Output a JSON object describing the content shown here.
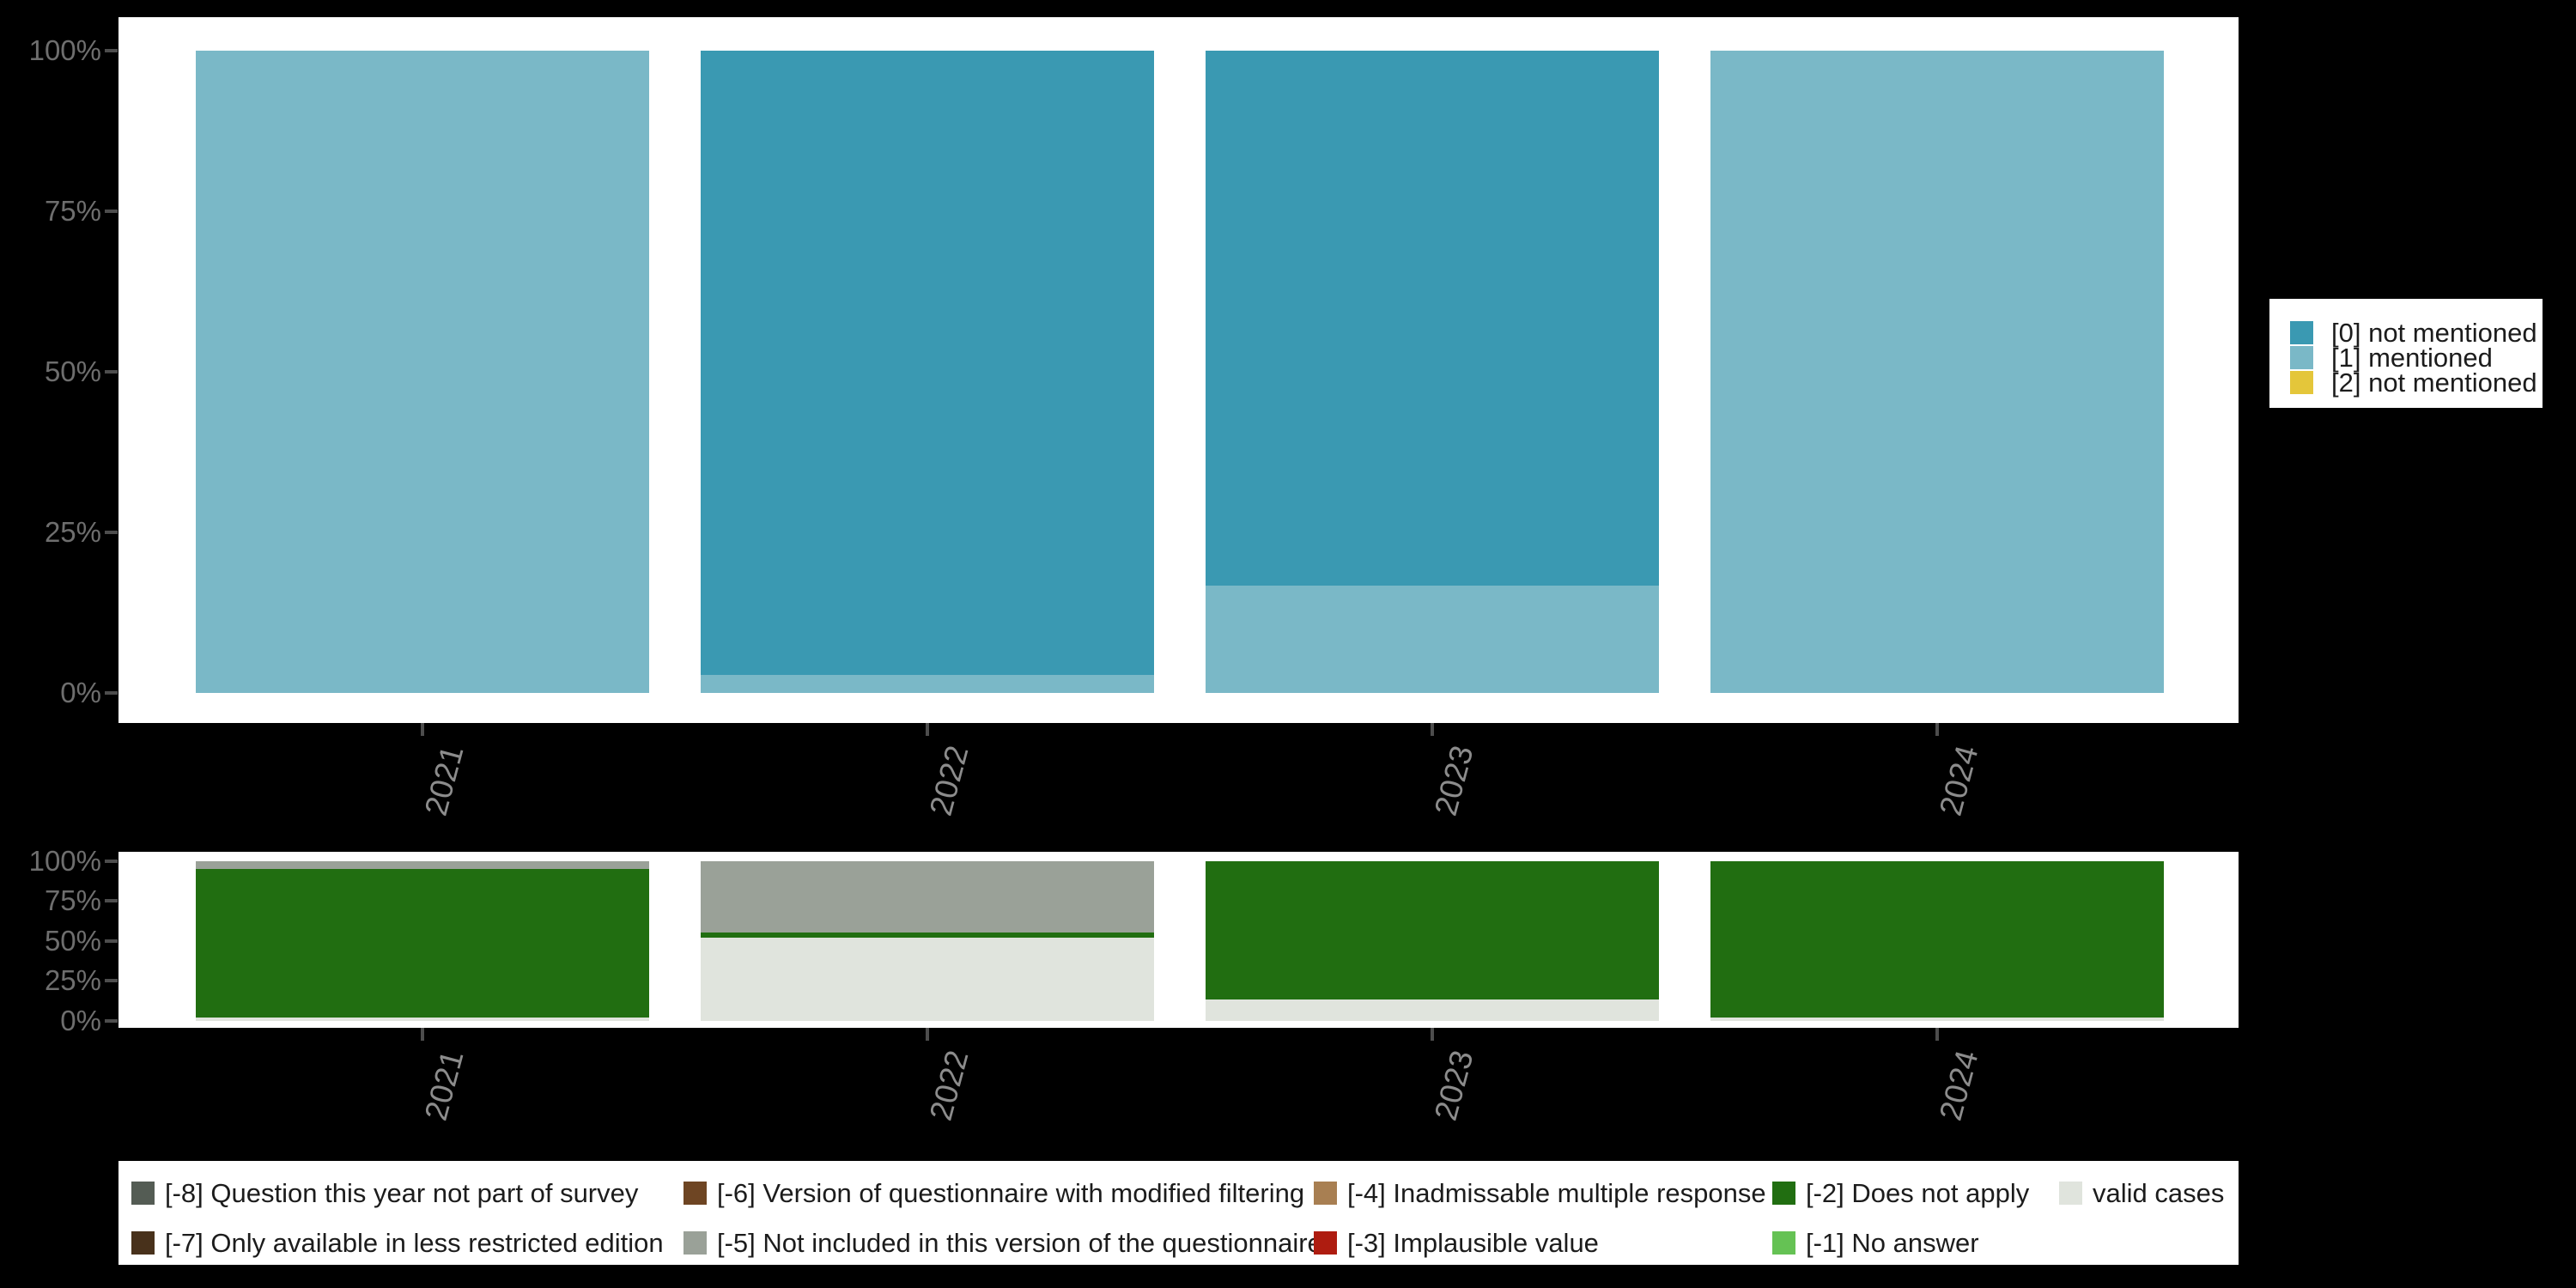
{
  "page": {
    "background": "#000000",
    "panel_background": "#ffffff",
    "axis_text_color_y": "#6e6e6e",
    "axis_text_color_x": "#8c8c8c",
    "tick_color": "#4d4d4d"
  },
  "chart_data": [
    {
      "type": "bar",
      "stacked": true,
      "orientation": "vertical",
      "title": "",
      "xlabel": "",
      "ylabel": "",
      "categories": [
        "2021",
        "2022",
        "2023",
        "2024"
      ],
      "yticks": [
        "100%",
        "75%",
        "50%",
        "25%",
        "0%"
      ],
      "ylim": [
        0,
        100
      ],
      "grid": false,
      "legend_position": "right",
      "series": [
        {
          "label": "[0] not mentioned",
          "color": "#3a99b2",
          "values": [
            0,
            97.2,
            83.3,
            0
          ]
        },
        {
          "label": "[1] mentioned",
          "color": "#7ab8c7",
          "values": [
            100,
            2.8,
            16.7,
            100
          ]
        },
        {
          "label": "[2] not mentioned",
          "color": "#e4c63a",
          "values": [
            0,
            0,
            0,
            0
          ]
        }
      ]
    },
    {
      "type": "bar",
      "stacked": true,
      "orientation": "vertical",
      "title": "",
      "xlabel": "",
      "ylabel": "",
      "categories": [
        "2021",
        "2022",
        "2023",
        "2024"
      ],
      "yticks": [
        "100%",
        "75%",
        "50%",
        "25%",
        "0%"
      ],
      "ylim": [
        0,
        100
      ],
      "grid": false,
      "legend_position": "bottom",
      "series": [
        {
          "label": "[-8] Question this year not part of survey",
          "color": "#545c54",
          "values": [
            0,
            0,
            0,
            0
          ]
        },
        {
          "label": "[-7] Only available in less restricted edition",
          "color": "#48311b",
          "values": [
            0,
            0,
            0,
            0
          ]
        },
        {
          "label": "[-6] Version of questionnaire with modified filtering",
          "color": "#6e4523",
          "values": [
            0,
            0,
            0,
            0
          ]
        },
        {
          "label": "[-5] Not included in this version of the questionnaire",
          "color": "#9aa198",
          "values": [
            4.9,
            44.6,
            0,
            0
          ]
        },
        {
          "label": "[-4] Inadmissable multiple response",
          "color": "#a87f52",
          "values": [
            0,
            0,
            0,
            0
          ]
        },
        {
          "label": "[-3] Implausible value",
          "color": "#ae1c10",
          "values": [
            0,
            0,
            0,
            0
          ]
        },
        {
          "label": "[-2] Does not apply",
          "color": "#216e11",
          "values": [
            93.1,
            3.5,
            86.5,
            97.9
          ]
        },
        {
          "label": "[-1] No answer",
          "color": "#65c254",
          "values": [
            0,
            0,
            0,
            0
          ]
        },
        {
          "label": "valid cases",
          "color": "#e0e4dd",
          "values": [
            2.0,
            51.9,
            13.5,
            2.1
          ]
        }
      ]
    }
  ],
  "legend_top": {
    "items": [
      {
        "label": "[0] not mentioned",
        "color": "#3a99b2"
      },
      {
        "label": "[1] mentioned",
        "color": "#7ab8c7"
      },
      {
        "label": "[2] not mentioned",
        "color": "#e4c63a"
      }
    ]
  },
  "legend_bottom": {
    "items": [
      {
        "label": "[-8] Question this year not part of survey",
        "color": "#545c54"
      },
      {
        "label": "[-6] Version of questionnaire with modified filtering",
        "color": "#6e4523"
      },
      {
        "label": "[-4] Inadmissable multiple response",
        "color": "#a87f52"
      },
      {
        "label": "[-2] Does not apply",
        "color": "#216e11"
      },
      {
        "label": "valid cases",
        "color": "#e0e4dd"
      },
      {
        "label": "[-7] Only available in less restricted edition",
        "color": "#48311b"
      },
      {
        "label": "[-5] Not included in this version of the questionnaire",
        "color": "#9aa198"
      },
      {
        "label": "[-3] Implausible value",
        "color": "#ae1c10"
      },
      {
        "label": "[-1] No answer",
        "color": "#65c254"
      }
    ]
  }
}
